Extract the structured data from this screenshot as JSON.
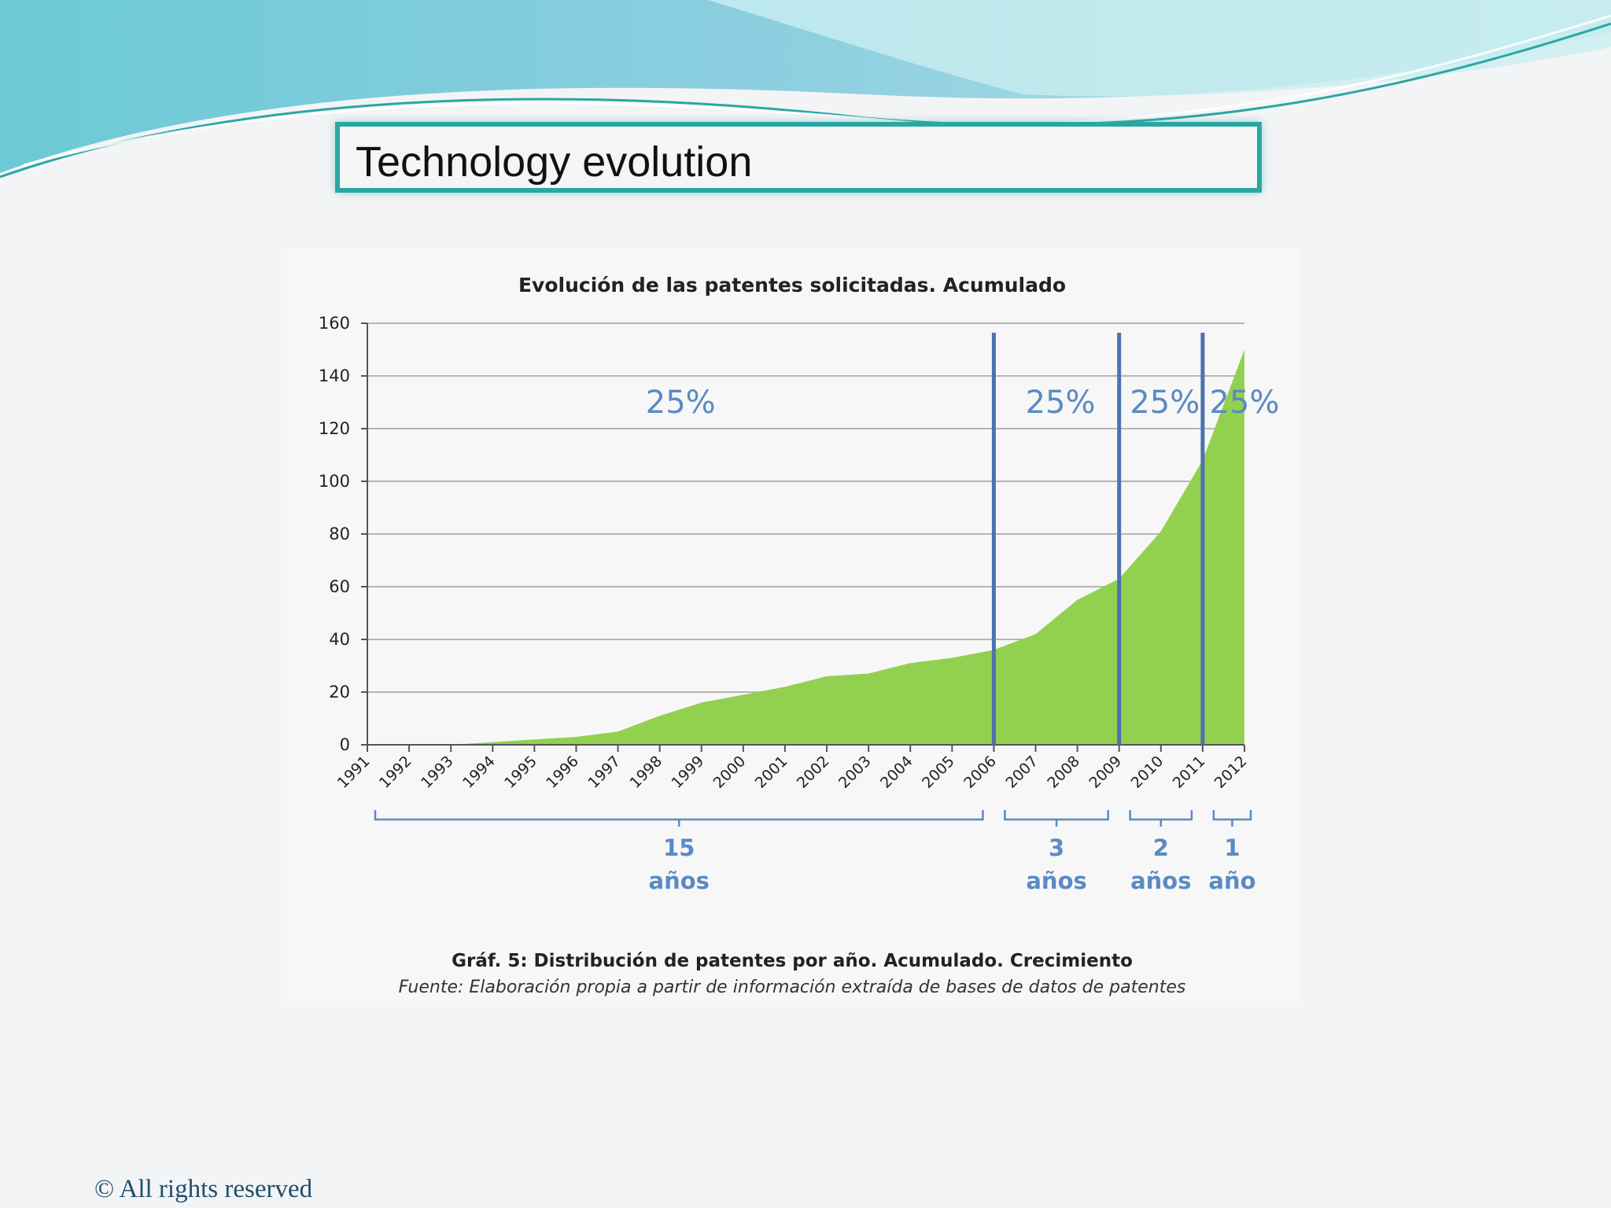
{
  "slide": {
    "title": "Technology evolution",
    "footer": "© All rights reserved",
    "accent_color": "#2aa7a4"
  },
  "chart_data": {
    "type": "area",
    "title": "Evolución de las patentes solicitadas. Acumulado",
    "caption": "Gráf. 5: Distribución de patentes por año. Acumulado. Crecimiento",
    "source": "Fuente: Elaboración propia a partir de información extraída de bases de datos de patentes",
    "x": [
      "1991",
      "1992",
      "1993",
      "1994",
      "1995",
      "1996",
      "1997",
      "1998",
      "1999",
      "2000",
      "2001",
      "2002",
      "2003",
      "2004",
      "2005",
      "2006",
      "2007",
      "2008",
      "2009",
      "2010",
      "2011",
      "2012"
    ],
    "values": [
      0,
      0,
      0,
      1,
      2,
      3,
      5,
      11,
      16,
      19,
      22,
      26,
      27,
      31,
      33,
      36,
      42,
      55,
      63,
      81,
      108,
      150
    ],
    "ylim": [
      0,
      160
    ],
    "yticks": [
      0,
      20,
      40,
      60,
      80,
      100,
      120,
      140,
      160
    ],
    "grid": true,
    "fill_color": "#92d050",
    "marker_color": "#4a72b0",
    "label_color": "#5b8ac4",
    "markers": [
      "2006",
      "2009",
      "2011"
    ],
    "segments": [
      {
        "pct": "25%",
        "num": "15",
        "unit": "años",
        "start": "1991",
        "end": "2006"
      },
      {
        "pct": "25%",
        "num": "3",
        "unit": "años",
        "start": "2006",
        "end": "2009"
      },
      {
        "pct": "25%",
        "num": "2",
        "unit": "años",
        "start": "2009",
        "end": "2011"
      },
      {
        "pct": "25%",
        "num": "1",
        "unit": "año",
        "start": "2011",
        "end": "2012"
      }
    ]
  }
}
